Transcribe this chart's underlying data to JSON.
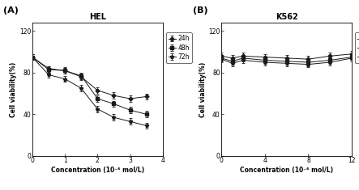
{
  "panel_A": {
    "title": "HEL",
    "label": "(A)",
    "xlabel": "Concentration (10⁻⁶ mol/L)",
    "ylabel": "Cell viability(%)",
    "xlim": [
      0,
      4
    ],
    "ylim": [
      0,
      128
    ],
    "xticks": [
      0,
      1,
      2,
      3,
      4
    ],
    "yticks": [
      0,
      40,
      80,
      120
    ],
    "series": {
      "24h": {
        "x": [
          0,
          0.5,
          1,
          1.5,
          2,
          2.5,
          3,
          3.5
        ],
        "y": [
          95,
          84,
          82,
          76,
          63,
          58,
          55,
          57
        ],
        "yerr": [
          2.5,
          2.5,
          2.5,
          3,
          3,
          3,
          3,
          3
        ],
        "marker": "D",
        "color": "#1a1a1a",
        "linestyle": "-"
      },
      "48h": {
        "x": [
          0,
          0.5,
          1,
          1.5,
          2,
          2.5,
          3,
          3.5
        ],
        "y": [
          95,
          83,
          82,
          77,
          55,
          50,
          44,
          40
        ],
        "yerr": [
          2.5,
          3,
          3,
          3,
          3,
          3,
          3,
          3
        ],
        "marker": "s",
        "color": "#1a1a1a",
        "linestyle": "-"
      },
      "72h": {
        "x": [
          0,
          0.5,
          1,
          1.5,
          2,
          2.5,
          3,
          3.5
        ],
        "y": [
          95,
          78,
          74,
          65,
          45,
          37,
          33,
          29
        ],
        "yerr": [
          2.5,
          3,
          3,
          3,
          3,
          3,
          3,
          3
        ],
        "marker": "*",
        "color": "#1a1a1a",
        "linestyle": "-"
      }
    }
  },
  "panel_B": {
    "title": "K562",
    "label": "(B)",
    "xlabel": "Concentration (10⁻⁶ mol/L)",
    "ylabel": "Cell viability(%)",
    "xlim": [
      0,
      12
    ],
    "ylim": [
      0,
      128
    ],
    "xticks": [
      0,
      4,
      8,
      12
    ],
    "yticks": [
      0,
      40,
      80,
      120
    ],
    "series": {
      "24h": {
        "x": [
          0,
          1,
          2,
          4,
          6,
          8,
          10,
          12
        ],
        "y": [
          96,
          94,
          96,
          95,
          94,
          93,
          96,
          98
        ],
        "yerr": [
          3,
          3,
          3,
          3,
          3,
          3,
          3,
          3
        ],
        "marker": "D",
        "color": "#1a1a1a",
        "linestyle": "-"
      },
      "48h": {
        "x": [
          0,
          1,
          2,
          4,
          6,
          8,
          10,
          12
        ],
        "y": [
          94,
          91,
          94,
          92,
          91,
          90,
          92,
          95
        ],
        "yerr": [
          3,
          3,
          3,
          3,
          3,
          3,
          3,
          3
        ],
        "marker": "s",
        "color": "#1a1a1a",
        "linestyle": "-"
      },
      "72h": {
        "x": [
          0,
          1,
          2,
          4,
          6,
          8,
          10,
          12
        ],
        "y": [
          93,
          89,
          92,
          90,
          89,
          88,
          90,
          94
        ],
        "yerr": [
          3,
          3,
          3,
          3,
          3,
          3,
          3,
          3
        ],
        "marker": "*",
        "color": "#1a1a1a",
        "linestyle": "-"
      }
    }
  },
  "legend_labels": [
    "24h",
    "48h",
    "72h"
  ],
  "background_color": "#ffffff",
  "font_size": 5.5,
  "title_font_size": 7,
  "label_font_size": 8
}
